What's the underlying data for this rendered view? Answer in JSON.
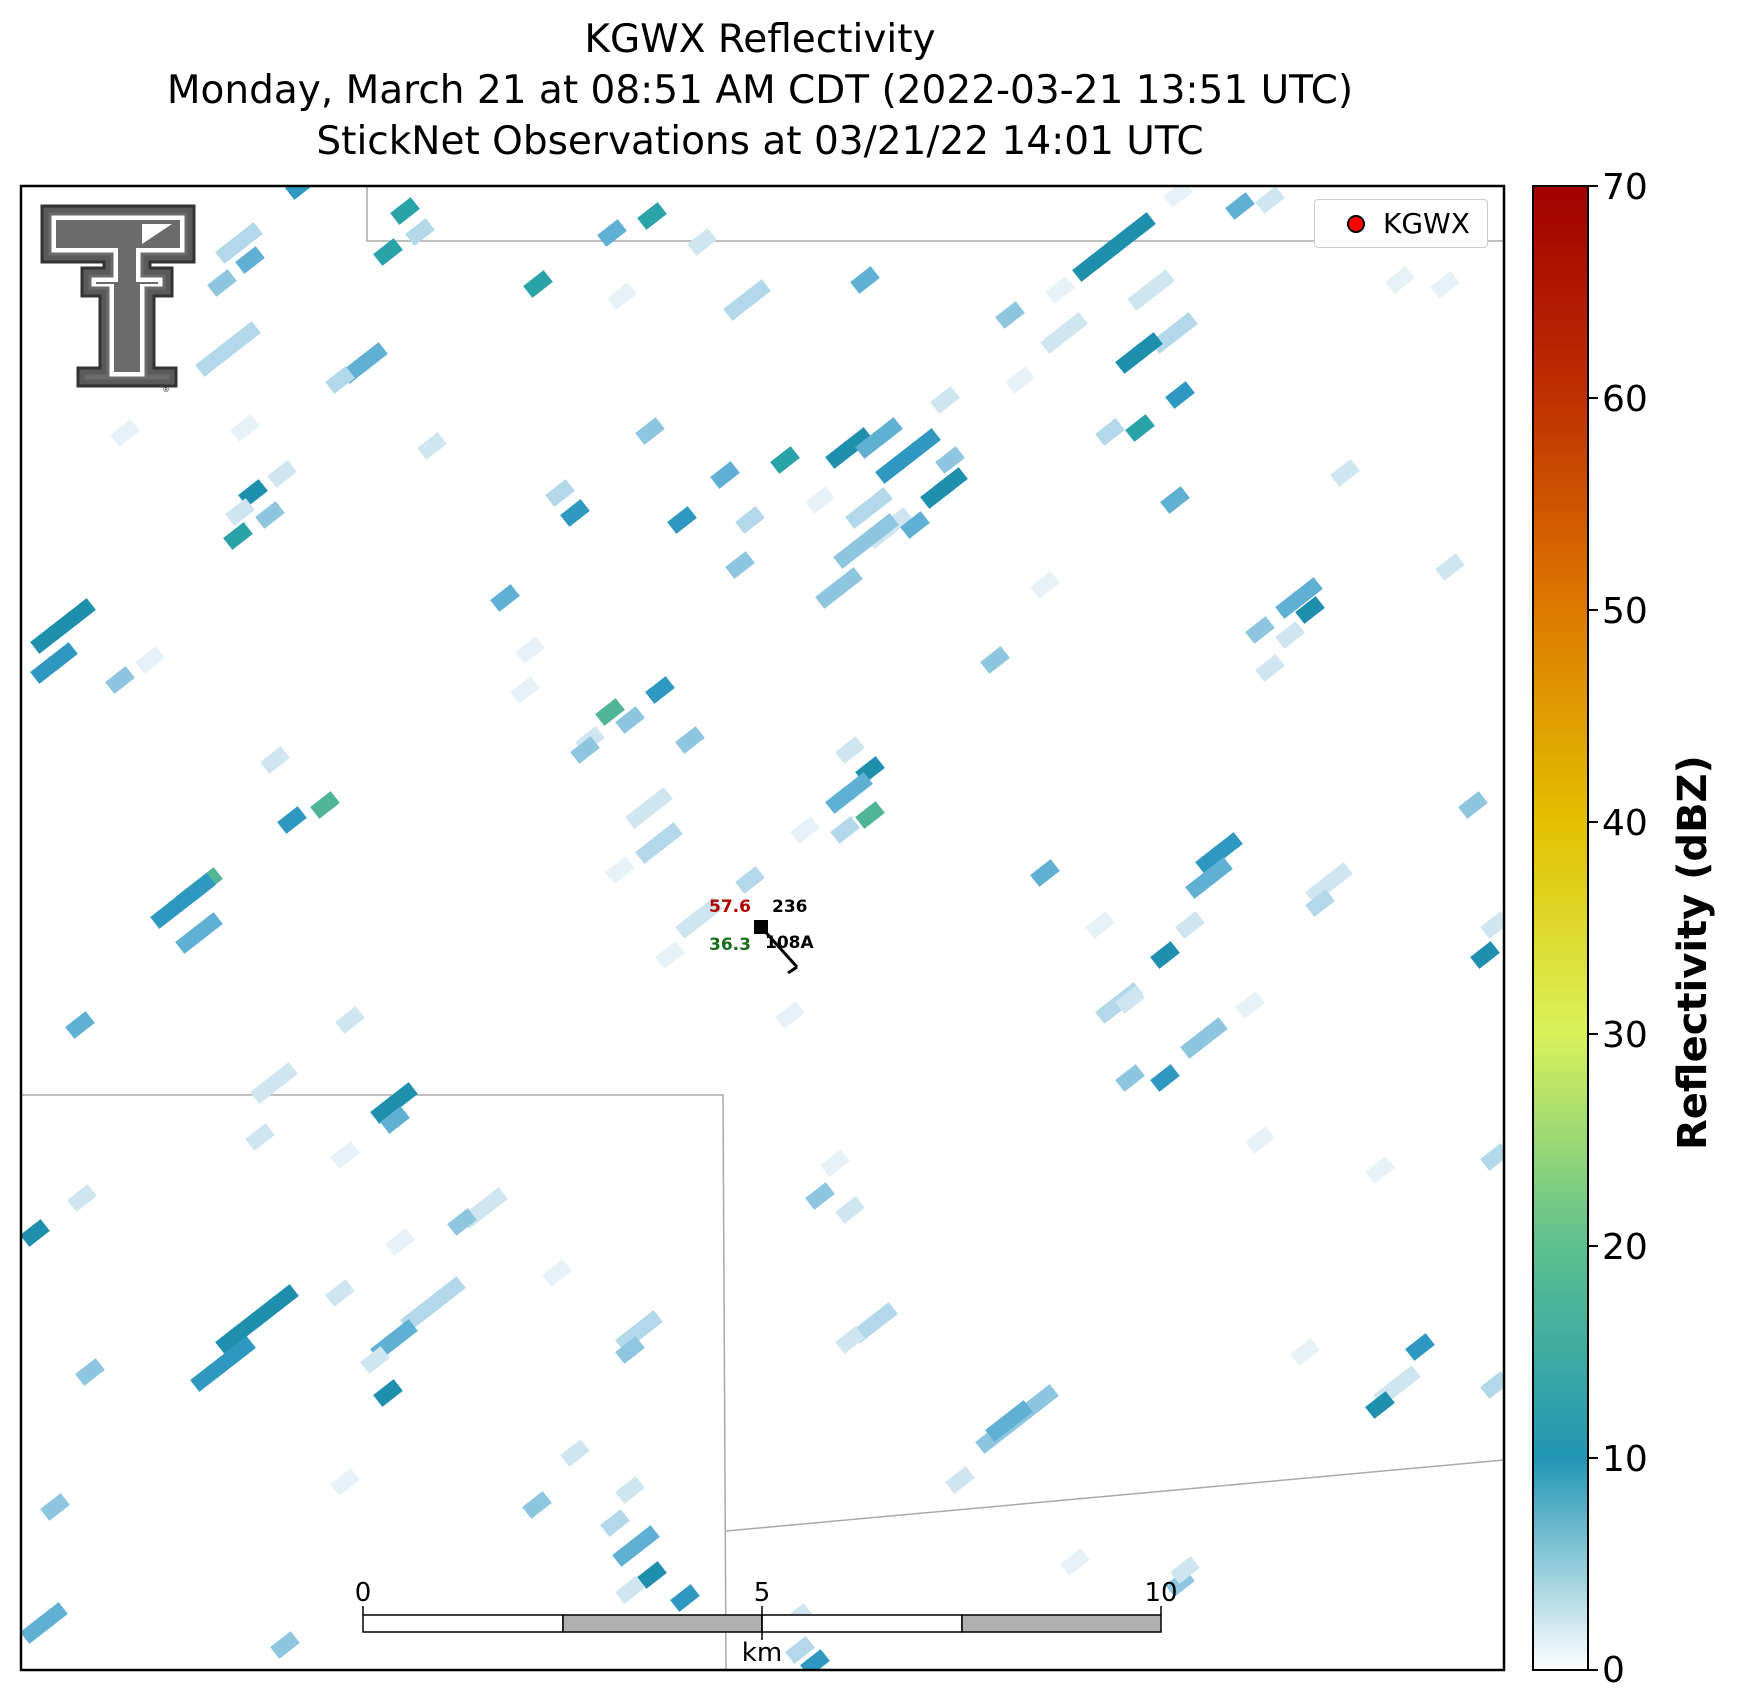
{
  "title": {
    "line1": "KGWX Reflectivity",
    "line2": "Monday, March 21 at 08:51 AM CDT (2022-03-21 13:51 UTC)",
    "line3": "StickNet Observations at 03/21/22 14:01 UTC"
  },
  "legend": {
    "label": "KGWX",
    "marker_color": "#ff0000"
  },
  "colorbar": {
    "label": "Reflectivity (dBZ)",
    "ticks": [
      "0",
      "10",
      "20",
      "30",
      "40",
      "50",
      "60",
      "70"
    ],
    "range": [
      0,
      70
    ],
    "colors": [
      "#ffffff",
      "#2196b4",
      "#5cc08f",
      "#d9f25a",
      "#e3c000",
      "#dd7a00",
      "#c03000",
      "#a00000"
    ]
  },
  "scalebar": {
    "ticks": [
      "0",
      "5",
      "10"
    ],
    "unit": "km"
  },
  "station": {
    "temperature": "57.6",
    "pressure": "236",
    "dewpoint": "36.3",
    "id": "108A",
    "temperature_color": "#b00000",
    "dewpoint_color": "#1a6e1a"
  },
  "logo": {
    "name": "texas-tech-double-t-logo"
  }
}
